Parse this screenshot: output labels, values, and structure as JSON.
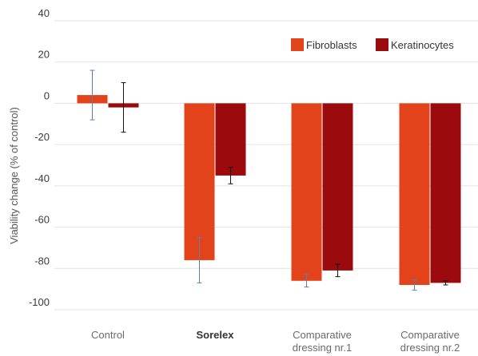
{
  "chart_data": {
    "type": "bar",
    "ylabel": "Viability change (% of control)",
    "ylim": [
      -100,
      40
    ],
    "yticks": [
      40,
      20,
      0,
      -20,
      -40,
      -60,
      -80,
      -100
    ],
    "grid": true,
    "legend_position": "top-right",
    "categories": [
      {
        "lines": [
          "Control"
        ],
        "bold": false
      },
      {
        "lines": [
          "Sorelex"
        ],
        "bold": true
      },
      {
        "lines": [
          "Comparative",
          "dressing nr.1"
        ],
        "bold": false
      },
      {
        "lines": [
          "Comparative",
          "dressing nr.2"
        ],
        "bold": false
      }
    ],
    "series": [
      {
        "name": "Fibroblasts",
        "color": "#e2431b",
        "error_color": "#5b7fa8",
        "values": [
          4,
          -76,
          -86,
          -88
        ],
        "errors": [
          12,
          11,
          3,
          2.5
        ]
      },
      {
        "name": "Keratinocytes",
        "color": "#9b0a0c",
        "error_color": "#111111",
        "values": [
          -2,
          -35,
          -81,
          -87
        ],
        "errors": [
          12,
          4,
          3,
          1
        ]
      }
    ]
  }
}
